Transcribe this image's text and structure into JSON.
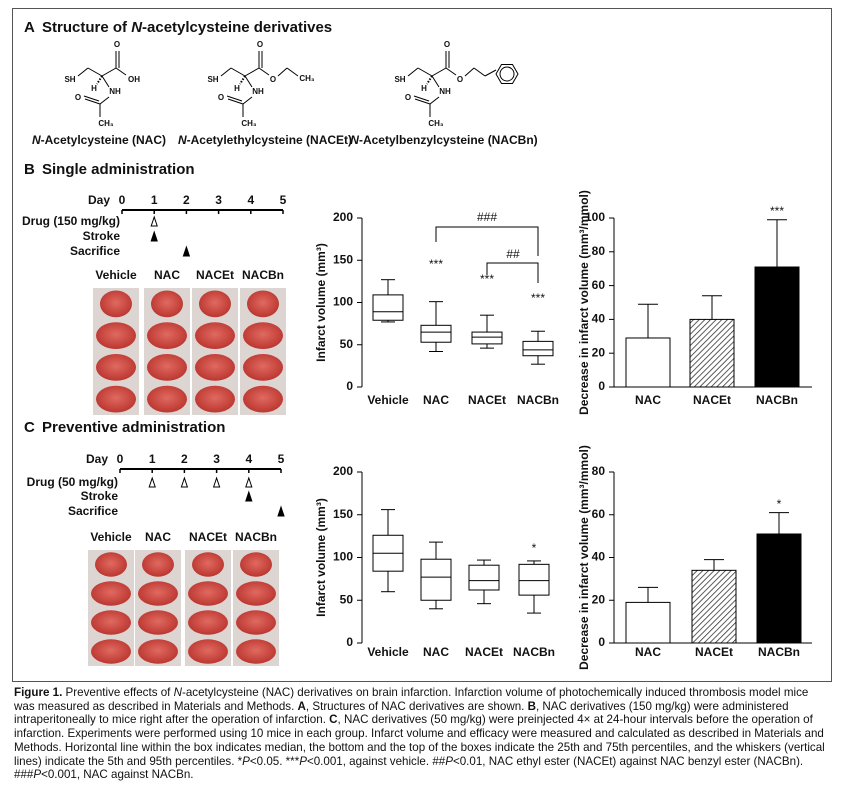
{
  "panel_a": {
    "label": "A",
    "title": [
      "Structure of ",
      "N",
      "-acetylcysteine derivatives"
    ],
    "compounds": [
      {
        "name": [
          "N",
          "-Acetylcysteine (NAC)"
        ],
        "atoms": [
          "SH",
          "O",
          "OH",
          "H",
          "NH",
          "O",
          "CH₃"
        ]
      },
      {
        "name": [
          "N",
          "-Acetylethylcysteine (NACEt)"
        ],
        "atoms": [
          "SH",
          "O",
          "O",
          "H",
          "NH",
          "O",
          "CH₃",
          "CH₃"
        ]
      },
      {
        "name": [
          "N",
          "-Acetylbenzylcysteine (NACBn)"
        ],
        "atoms": [
          "SH",
          "O",
          "O",
          "H",
          "NH",
          "O",
          "CH₃"
        ]
      }
    ]
  },
  "panel_b": {
    "label": "B",
    "title": "Single administration",
    "timeline": {
      "day_label": "Day",
      "days": [
        0,
        1,
        2,
        3,
        4,
        5
      ],
      "rows": [
        {
          "label": "Drug (150 mg/kg)",
          "days": [
            1
          ]
        },
        {
          "label": "Stroke",
          "days": [
            1
          ]
        },
        {
          "label": "Sacrifice",
          "days": [
            2
          ]
        }
      ]
    },
    "image_labels": [
      "Vehicle",
      "NAC",
      "NACEt",
      "NACBn"
    ]
  },
  "panel_c": {
    "label": "C",
    "title": "Preventive administration",
    "timeline": {
      "day_label": "Day",
      "days": [
        0,
        1,
        2,
        3,
        4,
        5
      ],
      "rows": [
        {
          "label": "Drug (50 mg/kg)",
          "days": [
            1,
            2,
            3,
            4
          ]
        },
        {
          "label": "Stroke",
          "days": [
            4
          ]
        },
        {
          "label": "Sacrifice",
          "days": [
            5
          ]
        }
      ]
    },
    "image_labels": [
      "Vehicle",
      "NAC",
      "NACEt",
      "NACBn"
    ]
  },
  "chart_data": [
    {
      "type": "box",
      "y_label": "Infarct volume (mm³)",
      "categories": [
        "Vehicle",
        "NAC",
        "NACEt",
        "NACBn"
      ],
      "whisker_low": [
        77,
        42,
        46,
        27
      ],
      "q1": [
        79,
        53,
        51,
        37
      ],
      "median": [
        89,
        65,
        59,
        44
      ],
      "q3": [
        109,
        73,
        65,
        54
      ],
      "whisker_high": [
        127,
        101,
        85,
        66
      ],
      "ylim": [
        0,
        200
      ],
      "yticks": [
        0,
        50,
        100,
        150,
        200
      ],
      "annotations": [
        "***",
        "***",
        "***",
        "###",
        "##"
      ]
    },
    {
      "type": "bar",
      "y_label": "Decrease in infarct volume (mm³/mmol)",
      "categories": [
        "NAC",
        "NACEt",
        "NACBn"
      ],
      "values": [
        29,
        40,
        71
      ],
      "errors": [
        20,
        14,
        28
      ],
      "colors": [
        "#ffffff",
        "#ffffff",
        "#000000"
      ],
      "hatched": [
        false,
        true,
        false
      ],
      "ylim": [
        0,
        100
      ],
      "yticks": [
        0,
        20,
        40,
        60,
        80,
        100
      ],
      "annotations": [
        "***"
      ]
    },
    {
      "type": "box",
      "y_label": "Infarct volume (mm³)",
      "categories": [
        "Vehicle",
        "NAC",
        "NACEt",
        "NACBn"
      ],
      "whisker_low": [
        60,
        40,
        46,
        35
      ],
      "q1": [
        84,
        50,
        62,
        56
      ],
      "median": [
        105,
        77,
        73,
        73
      ],
      "q3": [
        126,
        98,
        91,
        92
      ],
      "whisker_high": [
        156,
        118,
        97,
        96
      ],
      "ylim": [
        0,
        200
      ],
      "yticks": [
        0,
        50,
        100,
        150,
        200
      ],
      "annotations": [
        "*"
      ]
    },
    {
      "type": "bar",
      "y_label": "Decrease in infarct volume (mm³/mmol)",
      "categories": [
        "NAC",
        "NACEt",
        "NACBn"
      ],
      "values": [
        19,
        34,
        51
      ],
      "errors": [
        7,
        5,
        10
      ],
      "colors": [
        "#ffffff",
        "#ffffff",
        "#000000"
      ],
      "hatched": [
        false,
        true,
        false
      ],
      "ylim": [
        0,
        80
      ],
      "yticks": [
        0,
        20,
        40,
        60,
        80
      ],
      "annotations": [
        "*"
      ]
    }
  ],
  "caption": [
    "Figure 1.",
    " Preventive effects of ",
    "N",
    "-acetylcysteine (NAC) derivatives on brain infarction. Infarction volume of photochemically induced thrombosis model mice was measured as described in Materials and Methods. ",
    "A",
    ", Structures of NAC derivatives are shown. ",
    "B",
    ", NAC derivatives (150 mg/kg) were administered intraperitoneally to mice right after the operation of infarction. ",
    "C",
    ", NAC derivatives (50 mg/kg) were preinjected 4× at 24-hour intervals before the operation of infarction. Experiments were performed using 10 mice in each group. Infarct volume and efficacy were measured and calculated as described in Materials and Methods. Horizontal line within the box indicates median, the bottom and the top of the boxes indicate the 25th and 75th percentiles, and the whiskers (vertical lines) indicate the 5th and 95th percentiles. *",
    "P",
    "<0.05. ***",
    "P",
    "<0.001, against vehicle. ##",
    "P",
    "<0.01, NAC ethyl ester (NACEt) against NAC benzyl ester (NACBn). ###",
    "P",
    "<0.001, NAC against NACBn."
  ]
}
